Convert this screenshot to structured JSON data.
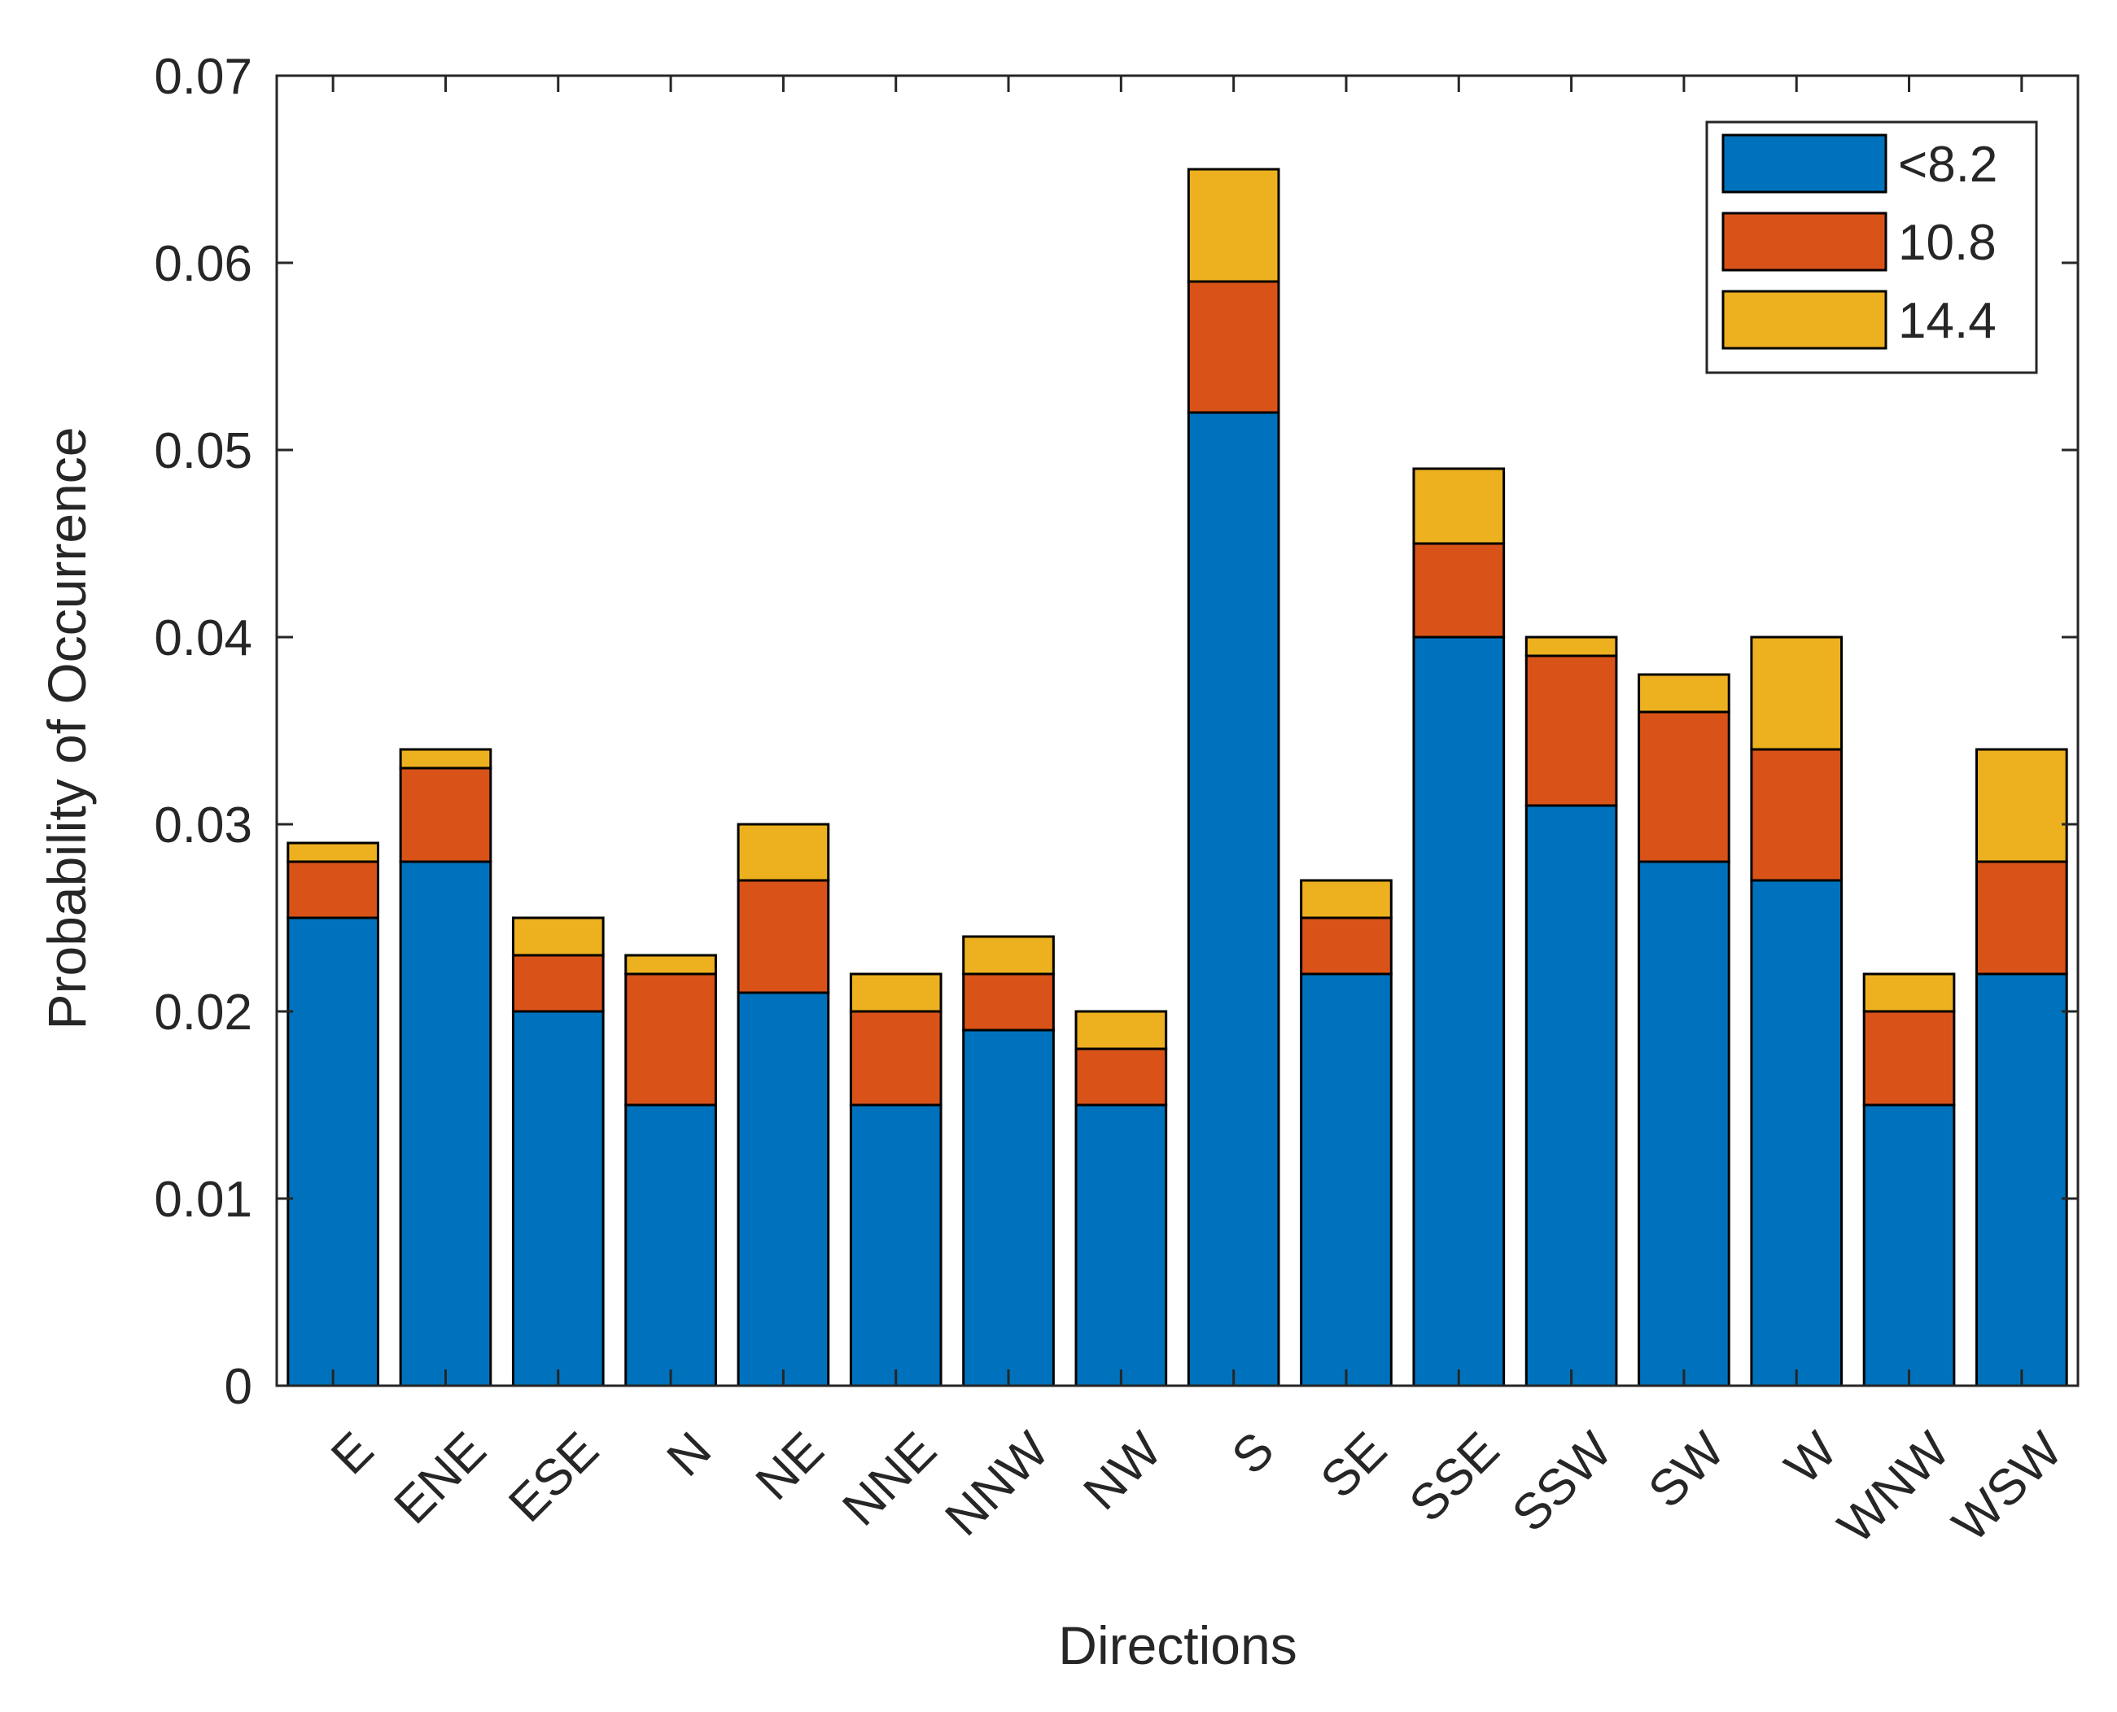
{
  "chart_data": {
    "type": "bar",
    "stacked": true,
    "title": "",
    "xlabel": "Directions",
    "ylabel": "Probability of Occurrence",
    "ylim": [
      0,
      0.07
    ],
    "yticks": [
      "0",
      "0.01",
      "0.02",
      "0.03",
      "0.04",
      "0.05",
      "0.06",
      "0.07"
    ],
    "categories": [
      "E",
      "ENE",
      "ESE",
      "N",
      "NE",
      "NNE",
      "NNW",
      "NW",
      "S",
      "SE",
      "SSE",
      "SSW",
      "SW",
      "W",
      "WNW",
      "WSW"
    ],
    "series": [
      {
        "name": "<8.2",
        "color": "#0072BD",
        "values": [
          0.025,
          0.028,
          0.02,
          0.015,
          0.021,
          0.015,
          0.019,
          0.015,
          0.052,
          0.022,
          0.04,
          0.031,
          0.028,
          0.027,
          0.015,
          0.022
        ]
      },
      {
        "name": "10.8",
        "color": "#D95319",
        "values": [
          0.003,
          0.005,
          0.003,
          0.007,
          0.006,
          0.005,
          0.003,
          0.003,
          0.007,
          0.003,
          0.005,
          0.008,
          0.008,
          0.007,
          0.005,
          0.006
        ]
      },
      {
        "name": "14.4",
        "color": "#EDB120",
        "values": [
          0.001,
          0.001,
          0.002,
          0.001,
          0.003,
          0.002,
          0.002,
          0.002,
          0.006,
          0.002,
          0.004,
          0.001,
          0.002,
          0.006,
          0.002,
          0.006
        ]
      }
    ],
    "legend_position": "top-right",
    "grid": false
  }
}
